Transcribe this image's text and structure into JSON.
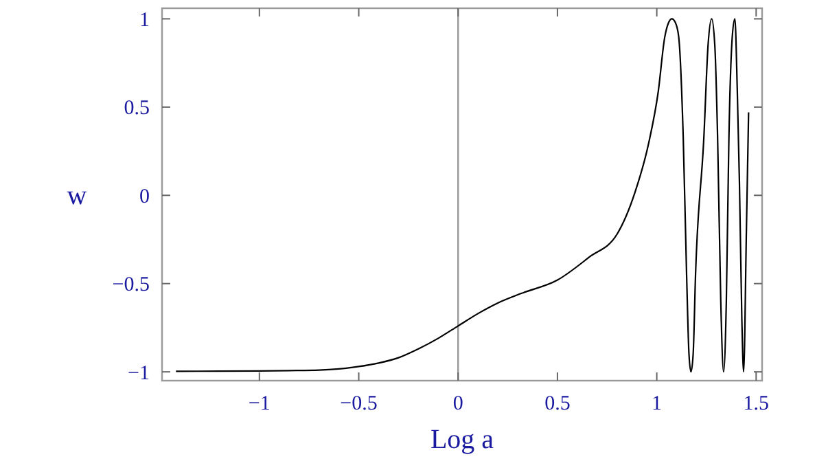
{
  "chart_data": {
    "type": "line",
    "xlabel": "Log a",
    "ylabel": "w",
    "xlim": [
      -1.49,
      1.53
    ],
    "ylim": [
      -1.05,
      1.06
    ],
    "xticks": [
      -1,
      -0.5,
      0,
      0.5,
      1,
      1.5
    ],
    "yticks": [
      -1,
      -0.5,
      0,
      0.5,
      1
    ],
    "ref_lines": [
      {
        "axis": "x",
        "value": 0,
        "color": "#999999"
      }
    ],
    "series": [
      {
        "color": "#000000",
        "x": [
          -1.42,
          -1.2,
          -1.0,
          -0.85,
          -0.7,
          -0.6,
          -0.5,
          -0.4,
          -0.3,
          -0.2,
          -0.1,
          0,
          0.1,
          0.2,
          0.32,
          0.5,
          0.66,
          0.8,
          0.89,
          0.96,
          1.007,
          1.04,
          1.06,
          1.076,
          1.093,
          1.11,
          1.133,
          1.15,
          1.162,
          1.172,
          1.183,
          1.195,
          1.237,
          1.258,
          1.276,
          1.292,
          1.306,
          1.322,
          1.336,
          1.35,
          1.363,
          1.38,
          1.393,
          1.405,
          1.416,
          1.428,
          1.437,
          1.451,
          1.462
        ],
        "values": [
          -0.997,
          -0.996,
          -0.995,
          -0.993,
          -0.99,
          -0.983,
          -0.97,
          -0.95,
          -0.92,
          -0.87,
          -0.81,
          -0.74,
          -0.67,
          -0.61,
          -0.555,
          -0.48,
          -0.35,
          -0.22,
          0.016,
          0.3,
          0.585,
          0.896,
          0.98,
          1.0,
          0.98,
          0.9,
          0.33,
          -0.45,
          -0.9,
          -1.0,
          -0.9,
          -0.45,
          0.33,
          0.85,
          1.0,
          0.85,
          0.33,
          -0.6,
          -1.0,
          -0.6,
          0.33,
          0.9,
          1.0,
          0.6,
          0.07,
          -0.7,
          -1.0,
          -0.2,
          0.47
        ]
      }
    ]
  }
}
